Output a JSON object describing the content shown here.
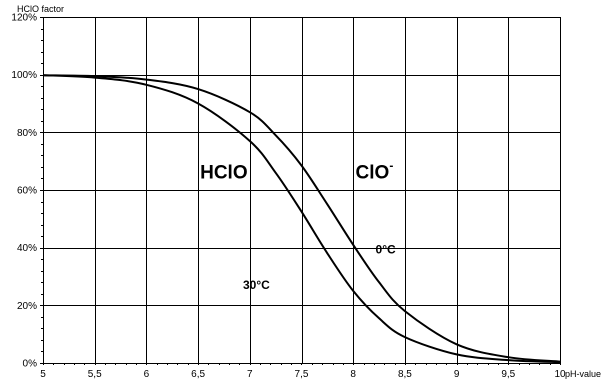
{
  "chart_data": {
    "type": "line",
    "title": "",
    "xlabel": "pH-value",
    "ylabel": "HClO factor",
    "xlim": [
      5,
      10
    ],
    "ylim": [
      0,
      120
    ],
    "x_ticks": [
      5,
      5.5,
      6,
      6.5,
      7,
      7.5,
      8,
      8.5,
      9,
      9.5,
      10
    ],
    "x_tick_labels": [
      "5",
      "5,5",
      "6",
      "6,5",
      "7",
      "7,5",
      "8",
      "8,5",
      "9",
      "9,5",
      "10"
    ],
    "y_ticks": [
      0,
      20,
      40,
      60,
      80,
      100,
      120
    ],
    "y_tick_labels": [
      "0%",
      "20%",
      "40%",
      "60%",
      "80%",
      "100%",
      "120%"
    ],
    "grid": true,
    "series": [
      {
        "name": "0°C",
        "x": [
          5,
          5.5,
          6,
          6.5,
          7,
          7.25,
          7.5,
          7.75,
          8,
          8.25,
          8.5,
          9,
          9.5,
          10
        ],
        "y": [
          99.8,
          99.5,
          98.3,
          95.0,
          87.0,
          79.0,
          68.5,
          55.0,
          41.0,
          28.0,
          18.0,
          6.5,
          2.0,
          0.5
        ]
      },
      {
        "name": "30°C",
        "x": [
          5,
          5.5,
          6,
          6.5,
          7,
          7.25,
          7.5,
          7.75,
          8,
          8.25,
          8.5,
          9,
          9.5,
          10
        ],
        "y": [
          99.8,
          99.0,
          96.5,
          90.0,
          77.0,
          66.0,
          52.5,
          38.0,
          25.0,
          15.5,
          9.0,
          3.0,
          1.0,
          0.3
        ]
      }
    ],
    "annotations": {
      "hclo": {
        "text": "HClO",
        "x": 6.5,
        "y": 64
      },
      "clo": {
        "text": "ClO",
        "sup": "-",
        "x": 7.1,
        "y": 64
      },
      "t0": {
        "text": "0°C",
        "x": 8.1,
        "y": 38
      },
      "t30": {
        "text": "30°C",
        "x": 7.35,
        "y": 27
      }
    }
  }
}
